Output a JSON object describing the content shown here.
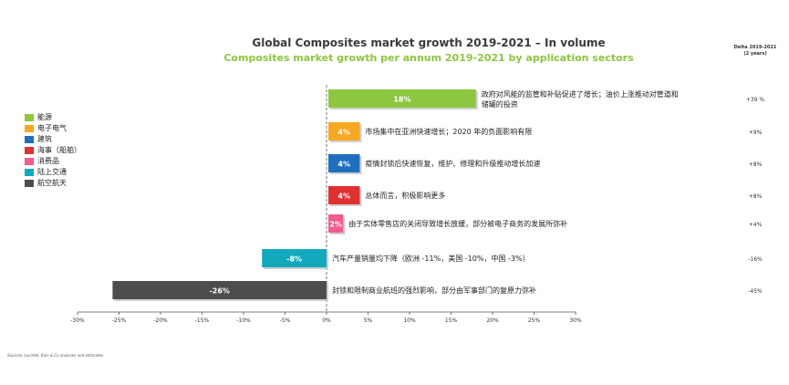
{
  "chart_data": {
    "type": "bar",
    "orientation": "horizontal",
    "title": "Global Composites market growth 2019-2021 – In volume",
    "subtitle": "Composites market growth per annum 2019-2021 by application sectors",
    "delta_header_line1": "Delta 2019-2021",
    "delta_header_line2": "(2 years)",
    "xlim": [
      -30,
      30
    ],
    "x_ticks": [
      -30,
      -25,
      -20,
      -15,
      -10,
      -5,
      0,
      5,
      10,
      15,
      20,
      25,
      30
    ],
    "x_tick_labels": [
      "-30%",
      "-25%",
      "-20%",
      "-15%",
      "-10%",
      "-5%",
      "0%",
      "5%",
      "10%",
      "15%",
      "20%",
      "25%",
      "30%"
    ],
    "categories": [
      {
        "name": "能源",
        "value": 18,
        "label": "18%",
        "color": "#8dc63f",
        "comment_line1": "政府对风能的监管和补贴促进了增长；油价上涨推动对管道和",
        "comment_line2": "储罐的投资",
        "delta": "+39 %"
      },
      {
        "name": "电子电气",
        "value": 4,
        "label": "4%",
        "color": "#f7a823",
        "comment_line1": "市场集中在亚洲快速增长；2020 年的负面影响有限",
        "comment_line2": "",
        "delta": "+9%"
      },
      {
        "name": "建筑",
        "value": 4,
        "label": "4%",
        "color": "#1f6fbf",
        "comment_line1": "疫情封锁后快速恢复，维护、修理和升级推动增长加速",
        "comment_line2": "",
        "delta": "+8%"
      },
      {
        "name": "海事（船舶）",
        "value": 4,
        "label": "4%",
        "color": "#e03131",
        "comment_line1": "总体而言，积极影响更多",
        "comment_line2": "",
        "delta": "+8%"
      },
      {
        "name": "消费品",
        "value": 2,
        "label": "2%",
        "color": "#ef5d8b",
        "comment_line1": "由于实体零售店的关闭导致增长放缓，部分被电子商务的发展所弥补",
        "comment_line2": "",
        "delta": "+4%"
      },
      {
        "name": "陆上交通",
        "value": -8,
        "label": "-8%",
        "color": "#13a9bd",
        "comment_line1": "汽车产量销量均下降（欧洲 -11%，美国 -10%，中国 -3%）",
        "comment_line2": "",
        "delta": "-16%"
      },
      {
        "name": "航空航天",
        "value": -26,
        "label": "-26%",
        "color": "#4d4d4d",
        "comment_line1": "封锁和限制商业航班的强烈影响，部分由军事部门的复原力弥补",
        "comment_line2": "",
        "delta": "-45%"
      }
    ]
  },
  "source_note": "Sources: Lucintel, Bain & Co analyses and estimates"
}
